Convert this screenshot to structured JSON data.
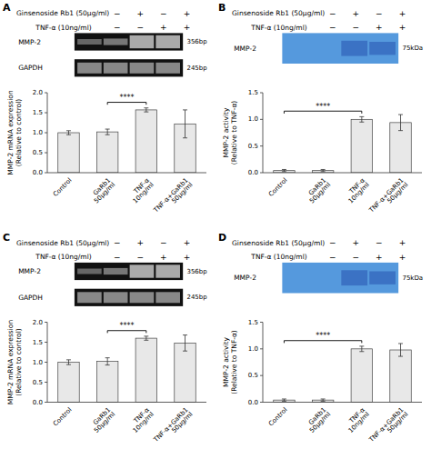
{
  "chart_data": [
    {
      "type": "bar",
      "title": "A",
      "blot": {
        "type": "pcr",
        "background": "#111111",
        "conditions": [
          {
            "label": "Ginsenoside Rb1 (50μg/ml)",
            "signs": [
              "−",
              "+",
              "−",
              "+"
            ]
          },
          {
            "label": "TNF-α (10ng/ml)",
            "signs": [
              "−",
              "−",
              "+",
              "+"
            ]
          }
        ],
        "rows": [
          {
            "label": "MMP-2",
            "size": "356bp",
            "colors": [
              "#666666",
              "#777777",
              "#aaaaaa",
              "#aaaaaa"
            ]
          },
          {
            "label": "GAPDH",
            "size": "245bp",
            "colors": [
              "#888888",
              "#888888",
              "#888888",
              "#888888"
            ]
          }
        ]
      },
      "categories": [
        "Control",
        "GaRb1 50μg/ml",
        "TNF-α 10ng/ml",
        "TNF-α+GaRb1 50μg/ml"
      ],
      "values": [
        1.0,
        1.02,
        1.57,
        1.22
      ],
      "errors": [
        0.05,
        0.07,
        0.05,
        0.35
      ],
      "color": "#e8e8e8",
      "ylabel": "MMP-2 mRNA expression\n(Relative to control)",
      "ylim": [
        0,
        2.0
      ],
      "yticks": [
        {
          "value": 0,
          "label": "0.0"
        },
        {
          "value": 0.5,
          "label": "0.5"
        },
        {
          "value": 1.0,
          "label": "1.0"
        },
        {
          "value": 1.5,
          "label": "1.5"
        },
        {
          "value": 2.0,
          "label": "2.0"
        }
      ],
      "annotations": [
        {
          "text": "****",
          "between": [
            1,
            2
          ]
        }
      ]
    },
    {
      "type": "bar",
      "title": "B",
      "blot": {
        "type": "western",
        "background": "#5599dd",
        "conditions": [
          {
            "label": "Ginsenoside Rb1 (50μg/ml)",
            "signs": [
              "−",
              "+",
              "−",
              "+"
            ]
          },
          {
            "label": "TNF-α (10ng/ml)",
            "signs": [
              "−",
              "−",
              "+",
              "+"
            ]
          }
        ],
        "rows": [
          {
            "label": "MMP-2",
            "size": "75kDa",
            "colors": [
              null,
              null,
              "#3366bb",
              "#3366bb"
            ]
          }
        ]
      },
      "categories": [
        "Control",
        "GaRb1 50μg/ml",
        "TNF-α 10ng/ml",
        "TNF-α+GaRb1 50μg/ml"
      ],
      "values": [
        0.04,
        0.04,
        1.0,
        0.94
      ],
      "errors": [
        0.02,
        0.02,
        0.05,
        0.15
      ],
      "color": "#e8e8e8",
      "ylabel": "MMP-2 activity\n(Relative to TNF-α)",
      "ylim": [
        0,
        1.5
      ],
      "yticks": [
        {
          "value": 0,
          "label": "0.0"
        },
        {
          "value": 0.5,
          "label": "0.5"
        },
        {
          "value": 1.0,
          "label": "1.0"
        },
        {
          "value": 1.5,
          "label": "1.5"
        }
      ],
      "annotations": [
        {
          "text": "****",
          "between": [
            0,
            2
          ]
        }
      ]
    },
    {
      "type": "bar",
      "title": "C",
      "blot": {
        "type": "pcr",
        "background": "#111111",
        "conditions": [
          {
            "label": "Ginsenoside Rb1 (50μg/ml)",
            "signs": [
              "−",
              "+",
              "−",
              "+"
            ]
          },
          {
            "label": "TNF-α (10ng/ml)",
            "signs": [
              "−",
              "−",
              "+",
              "+"
            ]
          }
        ],
        "rows": [
          {
            "label": "MMP-2",
            "size": "356bp",
            "colors": [
              "#666666",
              "#777777",
              "#aaaaaa",
              "#aaaaaa"
            ]
          },
          {
            "label": "GAPDH",
            "size": "245bp",
            "colors": [
              "#888888",
              "#888888",
              "#888888",
              "#888888"
            ]
          }
        ]
      },
      "categories": [
        "Control",
        "GaRb1 50μg/ml",
        "TNF-α 10ng/ml",
        "TNF-α+GaRb1 50μg/ml"
      ],
      "values": [
        1.0,
        1.02,
        1.6,
        1.48
      ],
      "errors": [
        0.06,
        0.09,
        0.05,
        0.2
      ],
      "color": "#e8e8e8",
      "ylabel": "MMP-2 mRNA expression\n(Relative to control)",
      "ylim": [
        0,
        2.0
      ],
      "yticks": [
        {
          "value": 0,
          "label": "0.0"
        },
        {
          "value": 0.5,
          "label": "0.5"
        },
        {
          "value": 1.0,
          "label": "1.0"
        },
        {
          "value": 1.5,
          "label": "1.5"
        },
        {
          "value": 2.0,
          "label": "2.0"
        }
      ],
      "annotations": [
        {
          "text": "****",
          "between": [
            1,
            2
          ]
        }
      ]
    },
    {
      "type": "bar",
      "title": "D",
      "blot": {
        "type": "western",
        "background": "#5599dd",
        "conditions": [
          {
            "label": "Ginsenoside Rb1 (50μg/ml)",
            "signs": [
              "−",
              "+",
              "−",
              "+"
            ]
          },
          {
            "label": "TNF-α (10ng/ml)",
            "signs": [
              "−",
              "−",
              "+",
              "+"
            ]
          }
        ],
        "rows": [
          {
            "label": "MMP-2",
            "size": "75kDa",
            "colors": [
              null,
              null,
              "#3366bb",
              "#3366bb"
            ]
          }
        ]
      },
      "categories": [
        "Control",
        "GaRb1 50μg/ml",
        "TNF-α 10ng/ml",
        "TNF-α+GaRb1 50μg/ml"
      ],
      "values": [
        0.04,
        0.04,
        1.0,
        0.98
      ],
      "errors": [
        0.02,
        0.02,
        0.05,
        0.12
      ],
      "color": "#e8e8e8",
      "ylabel": "MMP-2 activity\n(Relative to TNF-α)",
      "ylim": [
        0,
        1.5
      ],
      "yticks": [
        {
          "value": 0,
          "label": "0.0"
        },
        {
          "value": 0.5,
          "label": "0.5"
        },
        {
          "value": 1.0,
          "label": "1.0"
        },
        {
          "value": 1.5,
          "label": "1.5"
        }
      ],
      "annotations": [
        {
          "text": "****",
          "between": [
            0,
            2
          ]
        }
      ]
    }
  ]
}
